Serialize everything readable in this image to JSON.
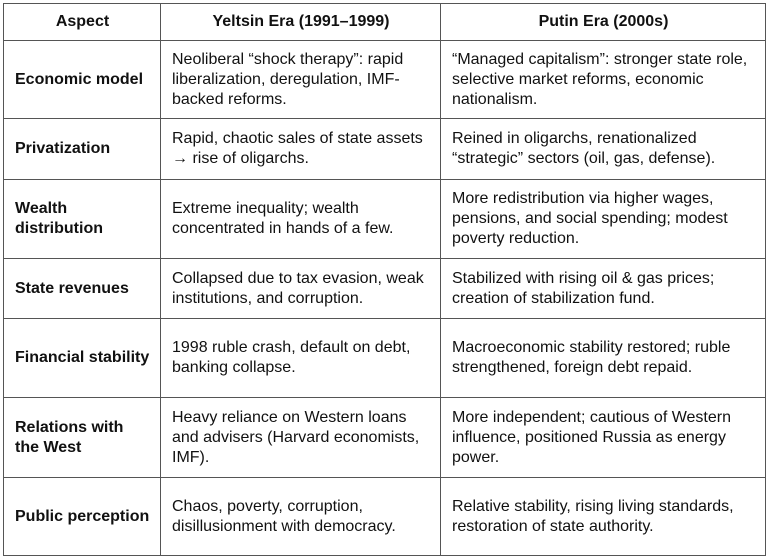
{
  "headers": [
    "Aspect",
    "Yeltsin Era (1991–1999)",
    "Putin Era (2000s)"
  ],
  "rows": [
    {
      "aspect": "Economic model",
      "yeltsin": "Neoliberal “shock therapy”: rapid liberalization, deregulation, IMF-backed reforms.",
      "putin": "“Managed capitalism”: stronger state role, selective market reforms, economic nationalism."
    },
    {
      "aspect": "Privatization",
      "yeltsin": "Rapid, chaotic sales of state assets → rise of oligarchs.",
      "putin": "Reined in oligarchs, renationalized “strategic” sectors (oil, gas, defense)."
    },
    {
      "aspect": "Wealth distribution",
      "yeltsin": "Extreme inequality; wealth concentrated in hands of a few.",
      "putin": "More redistribution via higher wages, pensions, and social spending; modest poverty reduction."
    },
    {
      "aspect": "State revenues",
      "yeltsin": "Collapsed due to tax evasion, weak institutions, and corruption.",
      "putin": "Stabilized with rising oil & gas prices; creation of stabilization fund."
    },
    {
      "aspect": "Financial stability",
      "yeltsin": "1998 ruble crash, default on debt, banking collapse.",
      "putin": "Macroeconomic stability restored; ruble strengthened, foreign debt repaid."
    },
    {
      "aspect": "Relations with the West",
      "yeltsin": "Heavy reliance on Western loans and advisers (Harvard economists, IMF).",
      "putin": "More independent; cautious of Western influence, positioned Russia as energy power."
    },
    {
      "aspect": "Public perception",
      "yeltsin": "Chaos, poverty, corruption, disillusionment with democracy.",
      "putin": "Relative stability, rising living standards, restoration of state authority."
    }
  ]
}
